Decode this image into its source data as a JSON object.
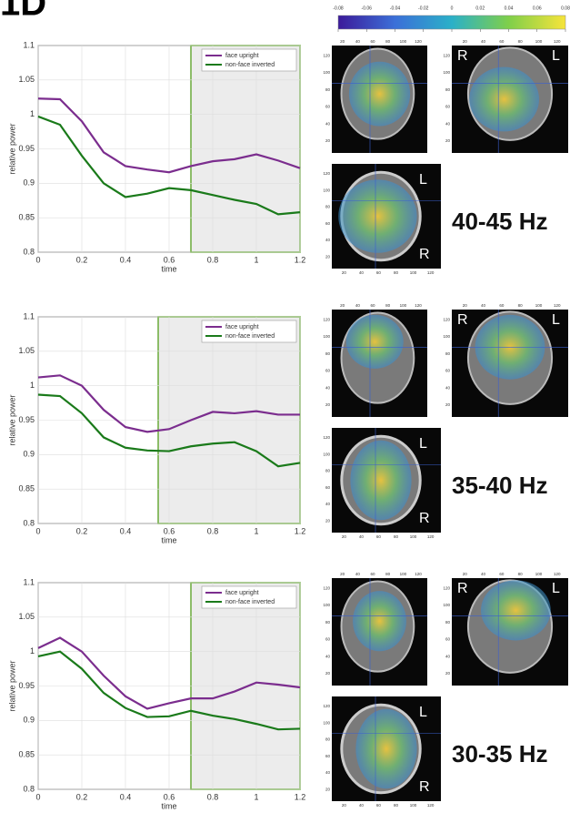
{
  "panel_label": "1D",
  "colorbar": {
    "lim": [
      -0.08,
      0.08
    ],
    "ticks": [
      -0.08,
      -0.06,
      -0.04,
      -0.02,
      0,
      0.02,
      0.04,
      0.06,
      0.08
    ]
  },
  "brain_ticks": [
    20,
    40,
    60,
    80,
    100,
    120
  ],
  "orientation": {
    "R": "R",
    "L": "L"
  },
  "bands": [
    "40-45 Hz",
    "35-40 Hz",
    "30-35 Hz"
  ],
  "chart_data": [
    {
      "type": "line",
      "xlabel": "time",
      "ylabel": "relative power",
      "x": [
        0,
        0.1,
        0.2,
        0.3,
        0.4,
        0.5,
        0.6,
        0.7,
        0.8,
        0.9,
        1.0,
        1.1,
        1.2
      ],
      "series": [
        {
          "name": "face upright",
          "color": "#7b2d8e",
          "values": [
            1.023,
            1.022,
            0.99,
            0.945,
            0.925,
            0.92,
            0.916,
            0.925,
            0.932,
            0.935,
            0.942,
            0.933,
            0.922
          ]
        },
        {
          "name": "non-face inverted",
          "color": "#1a7a1a",
          "values": [
            0.997,
            0.985,
            0.94,
            0.9,
            0.88,
            0.885,
            0.893,
            0.89,
            0.883,
            0.876,
            0.87,
            0.855,
            0.858
          ]
        }
      ],
      "highlight": [
        0.7,
        1.2
      ],
      "xlim": [
        0,
        1.2
      ],
      "xticks": [
        0,
        0.2,
        0.4,
        0.6,
        0.8,
        1,
        1.2
      ],
      "ylim": [
        0.8,
        1.1
      ],
      "yticks": [
        0.8,
        0.85,
        0.9,
        0.95,
        1,
        1.05,
        1.1
      ],
      "grid": true
    },
    {
      "type": "line",
      "xlabel": "time",
      "ylabel": "relative power",
      "x": [
        0,
        0.1,
        0.2,
        0.3,
        0.4,
        0.5,
        0.6,
        0.7,
        0.8,
        0.9,
        1.0,
        1.1,
        1.2
      ],
      "series": [
        {
          "name": "face upright",
          "color": "#7b2d8e",
          "values": [
            1.012,
            1.015,
            1.0,
            0.965,
            0.94,
            0.933,
            0.937,
            0.95,
            0.962,
            0.96,
            0.963,
            0.958,
            0.958
          ]
        },
        {
          "name": "non-face inverted",
          "color": "#1a7a1a",
          "values": [
            0.987,
            0.985,
            0.96,
            0.925,
            0.91,
            0.906,
            0.905,
            0.912,
            0.916,
            0.918,
            0.905,
            0.883,
            0.888
          ]
        }
      ],
      "highlight": [
        0.55,
        1.2
      ],
      "xlim": [
        0,
        1.2
      ],
      "xticks": [
        0,
        0.2,
        0.4,
        0.6,
        0.8,
        1,
        1.2
      ],
      "ylim": [
        0.8,
        1.1
      ],
      "yticks": [
        0.8,
        0.85,
        0.9,
        0.95,
        1,
        1.05,
        1.1
      ],
      "grid": true
    },
    {
      "type": "line",
      "xlabel": "time",
      "ylabel": "relative power",
      "x": [
        0,
        0.1,
        0.2,
        0.3,
        0.4,
        0.5,
        0.6,
        0.7,
        0.8,
        0.9,
        1.0,
        1.1,
        1.2
      ],
      "series": [
        {
          "name": "face upright",
          "color": "#7b2d8e",
          "values": [
            1.005,
            1.02,
            1.0,
            0.965,
            0.935,
            0.917,
            0.925,
            0.932,
            0.932,
            0.942,
            0.955,
            0.952,
            0.948
          ]
        },
        {
          "name": "non-face inverted",
          "color": "#1a7a1a",
          "values": [
            0.993,
            1.0,
            0.975,
            0.94,
            0.918,
            0.905,
            0.906,
            0.914,
            0.907,
            0.902,
            0.895,
            0.887,
            0.888
          ]
        }
      ],
      "highlight": [
        0.7,
        1.2
      ],
      "xlim": [
        0,
        1.2
      ],
      "xticks": [
        0,
        0.2,
        0.4,
        0.6,
        0.8,
        1,
        1.2
      ],
      "ylim": [
        0.8,
        1.1
      ],
      "yticks": [
        0.8,
        0.85,
        0.9,
        0.95,
        1,
        1.05,
        1.1
      ],
      "grid": true
    }
  ]
}
